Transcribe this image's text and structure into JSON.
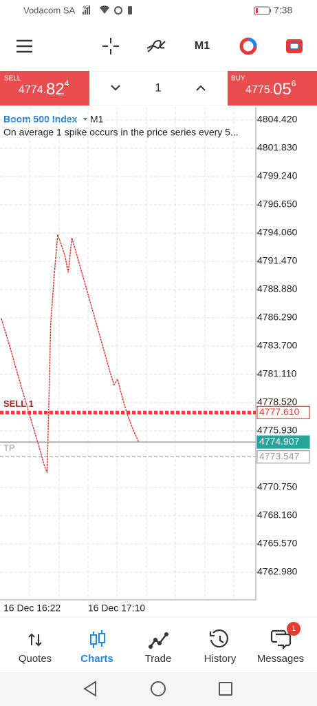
{
  "status_bar": {
    "carrier": "Vodacom SA",
    "network": "4G",
    "time": "7:38"
  },
  "toolbar": {
    "timeframe": "M1"
  },
  "order_panel": {
    "sell_label": "SELL",
    "sell_price_main": "4774.",
    "sell_price_big": "82",
    "sell_price_sup": "4",
    "volume": "1",
    "buy_label": "BUY",
    "buy_price_main": "4775.",
    "buy_price_big": "05",
    "buy_price_sup": "6"
  },
  "chart_data": {
    "type": "line",
    "title": "Boom 500 Index",
    "timeframe": "M1",
    "annotation": "On average 1 spike occurs in the price series every 5...",
    "categories": [
      "16 Dec 16:22",
      null,
      null,
      null,
      null,
      null,
      null,
      null,
      null,
      null,
      null,
      null,
      null,
      null,
      null,
      null,
      null,
      null,
      null,
      null,
      null,
      null,
      null,
      null,
      "16 Dec 17:10",
      null,
      null,
      null,
      null,
      null,
      null,
      null,
      null,
      null,
      null,
      null,
      null,
      null,
      null,
      null
    ],
    "values": [
      4786.23,
      4785.15,
      4784.08,
      4783.0,
      4781.8,
      4780.73,
      4779.59,
      4778.52,
      4777.38,
      4776.31,
      4775.23,
      4774.16,
      4772.96,
      4772.08,
      4785.72,
      4790.14,
      4793.93,
      4792.98,
      4792.04,
      4790.46,
      4793.62,
      4792.54,
      4791.41,
      4790.27,
      4789.13,
      4787.99,
      4786.86,
      4785.72,
      4784.58,
      4783.45,
      4782.31,
      4781.17,
      4780.16,
      4780.67,
      4779.4,
      4778.27,
      4777.25,
      4776.37,
      4775.61,
      4774.91
    ],
    "color": "#e53935",
    "ylim": [
      4760.45,
      4805.62
    ],
    "yticks": [
      {
        "value": 4804.42,
        "label": "4804.420"
      },
      {
        "value": 4801.83,
        "label": "4801.830"
      },
      {
        "value": 4799.24,
        "label": "4799.240"
      },
      {
        "value": 4796.65,
        "label": "4796.650"
      },
      {
        "value": 4794.06,
        "label": "4794.060"
      },
      {
        "value": 4791.47,
        "label": "4791.470"
      },
      {
        "value": 4788.88,
        "label": "4788.880"
      },
      {
        "value": 4786.29,
        "label": "4786.290"
      },
      {
        "value": 4783.7,
        "label": "4783.700"
      },
      {
        "value": 4781.11,
        "label": "4781.110"
      },
      {
        "value": 4778.52,
        "label": "4778.520"
      },
      {
        "value": 4775.93,
        "label": "4775.930"
      },
      {
        "value": 4770.75,
        "label": "4770.750"
      },
      {
        "value": 4768.16,
        "label": "4768.160"
      },
      {
        "value": 4765.57,
        "label": "4765.570"
      },
      {
        "value": 4762.98,
        "label": "4762.980"
      }
    ],
    "grid": true,
    "levels": [
      {
        "name": "SELL 1",
        "value": 4777.61,
        "value_label": "4777.610",
        "color": "#e53935"
      },
      {
        "value": 4774.907,
        "value_label": "4774.907",
        "color": "#26a69a"
      },
      {
        "name": "TP",
        "value": 4773.547,
        "value_label": "4773.547",
        "color": "#9e9e9e"
      }
    ]
  },
  "tab_bar": {
    "tabs": [
      "Quotes",
      "Charts",
      "Trade",
      "History",
      "Messages"
    ],
    "active": "Charts",
    "messages_badge": "1"
  }
}
